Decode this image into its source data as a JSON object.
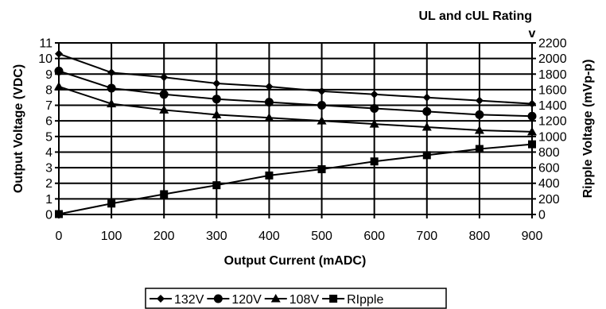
{
  "chart_data": {
    "type": "line",
    "title": "UL and cUL Rating",
    "subtitle": "v",
    "xlabel": "Output Current (mADC)",
    "ylabel": "Output Voltage (VDC)",
    "y2label": "Ripple Voltage (mVp-p)",
    "x": [
      0,
      100,
      200,
      300,
      400,
      500,
      600,
      700,
      800,
      900
    ],
    "xlim": [
      0,
      900
    ],
    "ylim": [
      0,
      11
    ],
    "y2lim": [
      0,
      2200
    ],
    "xticks": [
      "0",
      "100",
      "200",
      "300",
      "400",
      "500",
      "600",
      "700",
      "800",
      "900"
    ],
    "yticks": [
      "0",
      "1",
      "2",
      "3",
      "4",
      "5",
      "6",
      "7",
      "8",
      "9",
      "10",
      "11"
    ],
    "y2ticks": [
      "0",
      "200",
      "400",
      "600",
      "800",
      "1000",
      "1200",
      "1400",
      "1600",
      "1800",
      "2000",
      "2200"
    ],
    "grid": true,
    "legend_position": "bottom",
    "series": [
      {
        "name": "132V",
        "marker": "diamond",
        "axis": "left",
        "values": [
          10.3,
          9.1,
          8.8,
          8.4,
          8.2,
          7.9,
          7.7,
          7.5,
          7.3,
          7.1
        ]
      },
      {
        "name": "120V",
        "marker": "circle",
        "axis": "left",
        "values": [
          9.2,
          8.1,
          7.7,
          7.4,
          7.2,
          7.0,
          6.8,
          6.6,
          6.4,
          6.3
        ]
      },
      {
        "name": "108V",
        "marker": "triangle",
        "axis": "left",
        "values": [
          8.2,
          7.1,
          6.7,
          6.4,
          6.2,
          6.0,
          5.8,
          5.6,
          5.4,
          5.3
        ]
      },
      {
        "name": "RIpple",
        "marker": "square",
        "axis": "right",
        "values": [
          5,
          140,
          260,
          375,
          500,
          580,
          680,
          760,
          840,
          900
        ]
      }
    ]
  }
}
